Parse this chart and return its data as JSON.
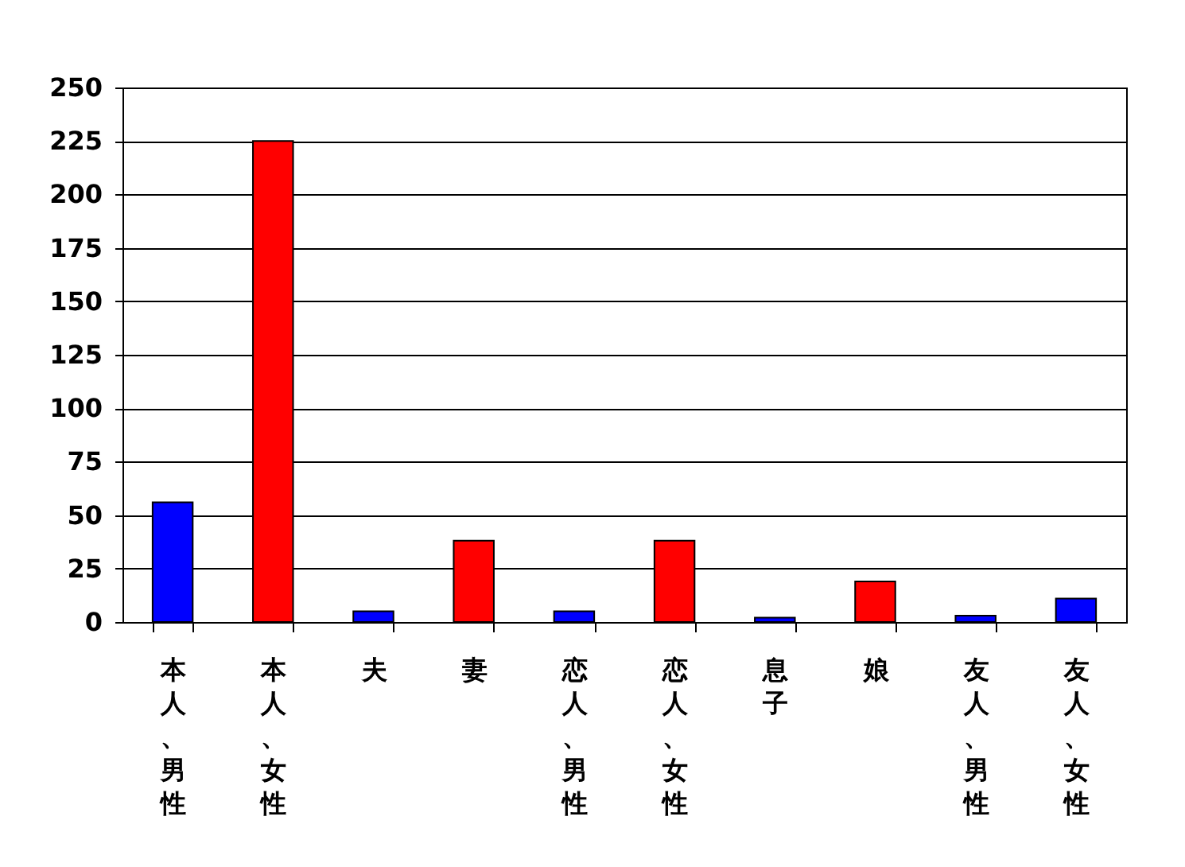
{
  "chart_data": {
    "type": "bar",
    "categories": [
      "本人、男性",
      "本人、女性",
      "夫",
      "妻",
      "恋人、男性",
      "恋人、女性",
      "息子",
      "娘",
      "友人、男性",
      "友人、女性"
    ],
    "values": [
      56,
      225,
      5,
      38,
      5,
      38,
      2,
      19,
      3,
      11
    ],
    "colors": [
      "#0000ff",
      "#ff0000",
      "#0000ff",
      "#ff0000",
      "#0000ff",
      "#ff0000",
      "#0000ff",
      "#ff0000",
      "#0000ff",
      "#0000ff"
    ],
    "ylim": [
      0,
      250
    ],
    "yticks": [
      0,
      25,
      50,
      75,
      100,
      125,
      150,
      175,
      200,
      225,
      250
    ],
    "grid": "y"
  }
}
